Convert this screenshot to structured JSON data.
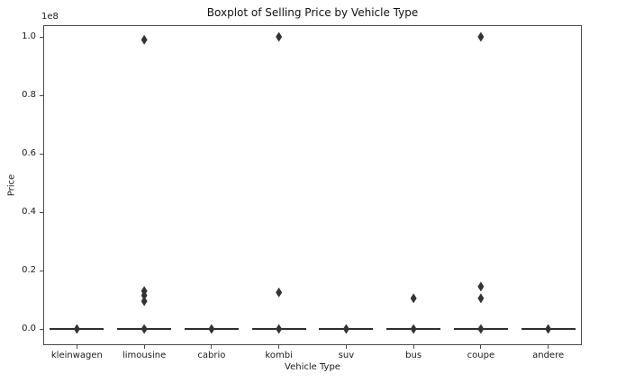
{
  "chart_data": {
    "type": "boxplot",
    "title": "Boxplot of Selling Price by Vehicle Type",
    "xlabel": "Vehicle Type",
    "ylabel": "Price",
    "y_offset_label": "1e8",
    "y_unit_multiplier": 100000000,
    "ylim": [
      -0.055,
      1.04
    ],
    "grid": false,
    "legend": null,
    "flier_marker": "diamond",
    "y_ticks": [
      0.0,
      0.2,
      0.4,
      0.6,
      0.8,
      1.0
    ],
    "y_tick_labels": [
      "0.0",
      "0.2",
      "0.4",
      "0.6",
      "0.8",
      "1.0"
    ],
    "categories": [
      "kleinwagen",
      "limousine",
      "cabrio",
      "kombi",
      "suv",
      "bus",
      "coupe",
      "andere"
    ],
    "boxes": [
      {
        "category": "kleinwagen",
        "q1": 0,
        "median": 0,
        "q3": 0,
        "whisker_low": 0,
        "whisker_high": 0,
        "outliers": [
          0
        ]
      },
      {
        "category": "limousine",
        "q1": 0,
        "median": 0,
        "q3": 0,
        "whisker_low": 0,
        "whisker_high": 0,
        "outliers": [
          0.99,
          0.13,
          0.115,
          0.095,
          0
        ]
      },
      {
        "category": "cabrio",
        "q1": 0,
        "median": 0,
        "q3": 0,
        "whisker_low": 0,
        "whisker_high": 0,
        "outliers": [
          0
        ]
      },
      {
        "category": "kombi",
        "q1": 0,
        "median": 0,
        "q3": 0,
        "whisker_low": 0,
        "whisker_high": 0,
        "outliers": [
          1.0,
          0.125,
          0
        ]
      },
      {
        "category": "suv",
        "q1": 0,
        "median": 0,
        "q3": 0,
        "whisker_low": 0,
        "whisker_high": 0,
        "outliers": [
          0
        ]
      },
      {
        "category": "bus",
        "q1": 0,
        "median": 0,
        "q3": 0,
        "whisker_low": 0,
        "whisker_high": 0,
        "outliers": [
          0.105,
          0
        ]
      },
      {
        "category": "coupe",
        "q1": 0,
        "median": 0,
        "q3": 0,
        "whisker_low": 0,
        "whisker_high": 0,
        "outliers": [
          1.0,
          0.145,
          0.105,
          0
        ]
      },
      {
        "category": "andere",
        "q1": 0,
        "median": 0,
        "q3": 0,
        "whisker_low": 0,
        "whisker_high": 0,
        "outliers": [
          0
        ]
      }
    ],
    "colors": {
      "background": "#ffffff",
      "box_line": "#2e2e2e",
      "flier": "#333333",
      "spine": "#4a4a4a",
      "text": "#1a1a1a"
    }
  }
}
